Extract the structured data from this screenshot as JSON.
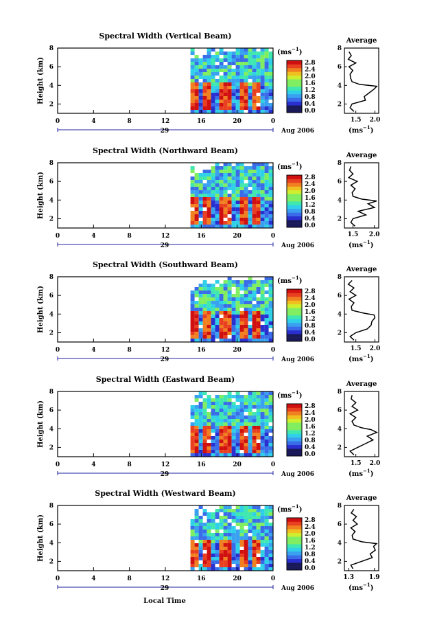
{
  "colors": {
    "scale": [
      "#1a1a5a",
      "#2a2fd0",
      "#3a6be8",
      "#3aa0f0",
      "#30d0e8",
      "#40e8b0",
      "#80ee60",
      "#d0ee30",
      "#f0c020",
      "#f08020",
      "#e84020",
      "#d01010"
    ]
  },
  "shared": {
    "ylabel": "Height (km)",
    "xlabel": "Local Time",
    "date_label": "Aug 2006",
    "day_label": "29",
    "colorbar_unit": "(ms",
    "colorbar_unit_exp": "−1",
    "colorbar_unit_end": ")",
    "average_title": "Average",
    "average_unit": "(ms",
    "average_unit_exp": "−1",
    "average_unit_end": ")"
  },
  "chart_data": [
    {
      "type": "heatmap",
      "title": "Spectral Width (Vertical Beam)",
      "x_ticks": [
        "0",
        "4",
        "8",
        "12",
        "16",
        "20",
        "0"
      ],
      "y_ticks": [
        "2",
        "4",
        "6",
        "8"
      ],
      "colorbar_ticks": [
        "0.0",
        "0.4",
        "0.8",
        "1.2",
        "1.6",
        "2.0",
        "2.4",
        "2.8"
      ],
      "xlim": [
        0,
        24
      ],
      "ylim": [
        1,
        8
      ],
      "data_start_hour": 14.8,
      "average": {
        "x_ticks": [
          "1.5",
          "2.0"
        ],
        "xlim": [
          1.2,
          2.1
        ],
        "y_ticks": [
          "2",
          "4",
          "6",
          "8"
        ],
        "height": [
          1.2,
          1.6,
          2.0,
          2.4,
          2.8,
          3.2,
          3.6,
          3.9,
          4.1,
          4.4,
          4.8,
          5.2,
          5.6,
          6.0,
          6.4,
          6.8,
          7.2,
          7.6
        ],
        "value": [
          1.45,
          1.35,
          1.4,
          1.75,
          1.72,
          1.85,
          1.98,
          2.05,
          1.6,
          1.4,
          1.36,
          1.35,
          1.42,
          1.32,
          1.5,
          1.3,
          1.38,
          1.32
        ]
      }
    },
    {
      "type": "heatmap",
      "title": "Spectral Width (Northward Beam)",
      "x_ticks": [
        "0",
        "4",
        "8",
        "12",
        "16",
        "20",
        "0"
      ],
      "y_ticks": [
        "2",
        "4",
        "6",
        "8"
      ],
      "colorbar_ticks": [
        "0.0",
        "0.4",
        "0.8",
        "1.2",
        "1.6",
        "2.0",
        "2.4",
        "2.8"
      ],
      "xlim": [
        0,
        24
      ],
      "ylim": [
        1,
        8
      ],
      "data_start_hour": 14.8,
      "average": {
        "x_ticks": [
          "1.5",
          "2.0"
        ],
        "xlim": [
          1.3,
          2.1
        ],
        "y_ticks": [
          "2",
          "4",
          "6",
          "8"
        ],
        "height": [
          1.2,
          1.6,
          2.0,
          2.4,
          2.8,
          3.2,
          3.6,
          3.9,
          4.1,
          4.4,
          4.8,
          5.2,
          5.6,
          6.0,
          6.4,
          6.8,
          7.2,
          7.6
        ],
        "value": [
          1.55,
          1.45,
          1.5,
          1.8,
          1.62,
          2.0,
          1.85,
          2.05,
          1.7,
          1.5,
          1.48,
          1.55,
          1.45,
          1.6,
          1.4,
          1.5,
          1.42,
          1.45
        ]
      }
    },
    {
      "type": "heatmap",
      "title": "Spectral Width (Southward Beam)",
      "x_ticks": [
        "0",
        "4",
        "8",
        "12",
        "16",
        "20",
        "0"
      ],
      "y_ticks": [
        "2",
        "4",
        "6",
        "8"
      ],
      "colorbar_ticks": [
        "0.0",
        "0.4",
        "0.8",
        "1.2",
        "1.6",
        "2.0",
        "2.4",
        "2.8"
      ],
      "xlim": [
        0,
        24
      ],
      "ylim": [
        1,
        8
      ],
      "data_start_hour": 14.8,
      "average": {
        "x_ticks": [
          "1.5",
          "2.0"
        ],
        "xlim": [
          1.2,
          2.1
        ],
        "y_ticks": [
          "2",
          "4",
          "6",
          "8"
        ],
        "height": [
          1.2,
          1.6,
          2.0,
          2.4,
          2.8,
          3.2,
          3.6,
          3.9,
          4.1,
          4.4,
          4.8,
          5.2,
          5.6,
          6.0,
          6.4,
          6.8,
          7.2,
          7.6
        ],
        "value": [
          1.45,
          1.35,
          1.5,
          1.8,
          1.9,
          1.92,
          2.0,
          1.98,
          1.7,
          1.4,
          1.38,
          1.45,
          1.32,
          1.5,
          1.35,
          1.45,
          1.3,
          1.4
        ]
      }
    },
    {
      "type": "heatmap",
      "title": "Spectral Width (Eastward Beam)",
      "x_ticks": [
        "0",
        "4",
        "8",
        "12",
        "16",
        "20",
        "0"
      ],
      "y_ticks": [
        "2",
        "4",
        "6",
        "8"
      ],
      "colorbar_ticks": [
        "0.0",
        "0.4",
        "0.8",
        "1.2",
        "1.6",
        "2.0",
        "2.4",
        "2.8"
      ],
      "xlim": [
        0,
        24
      ],
      "ylim": [
        1,
        8
      ],
      "data_start_hour": 14.8,
      "average": {
        "x_ticks": [
          "1.5",
          "2.0"
        ],
        "xlim": [
          1.2,
          2.1
        ],
        "y_ticks": [
          "2",
          "4",
          "6",
          "8"
        ],
        "height": [
          1.2,
          1.6,
          2.0,
          2.4,
          2.8,
          3.2,
          3.6,
          3.9,
          4.1,
          4.4,
          4.8,
          5.2,
          5.6,
          6.0,
          6.4,
          6.8,
          7.2,
          7.6
        ],
        "value": [
          1.45,
          1.35,
          1.55,
          1.75,
          1.95,
          1.8,
          2.05,
          1.9,
          1.65,
          1.45,
          1.4,
          1.5,
          1.35,
          1.55,
          1.4,
          1.5,
          1.38,
          1.4
        ]
      }
    },
    {
      "type": "heatmap",
      "title": "Spectral Width (Westward Beam)",
      "x_ticks": [
        "0",
        "4",
        "8",
        "12",
        "16",
        "20",
        "0"
      ],
      "y_ticks": [
        "2",
        "4",
        "6",
        "8"
      ],
      "colorbar_ticks": [
        "0.0",
        "0.4",
        "0.8",
        "1.2",
        "1.6",
        "2.0",
        "2.4",
        "2.8"
      ],
      "xlim": [
        0,
        24
      ],
      "ylim": [
        1,
        8
      ],
      "data_start_hour": 14.8,
      "average": {
        "x_ticks": [
          "1.3",
          "1.9"
        ],
        "xlim": [
          1.2,
          2.0
        ],
        "y_ticks": [
          "2",
          "4",
          "6",
          "8"
        ],
        "height": [
          1.2,
          1.6,
          2.0,
          2.4,
          2.8,
          3.2,
          3.6,
          3.9,
          4.1,
          4.4,
          4.8,
          5.2,
          5.6,
          6.0,
          6.4,
          6.8,
          7.2,
          7.6
        ],
        "value": [
          1.4,
          1.35,
          1.6,
          1.85,
          1.8,
          1.92,
          1.88,
          1.95,
          1.6,
          1.4,
          1.38,
          1.45,
          1.35,
          1.5,
          1.4,
          1.48,
          1.36,
          1.42
        ]
      }
    }
  ]
}
